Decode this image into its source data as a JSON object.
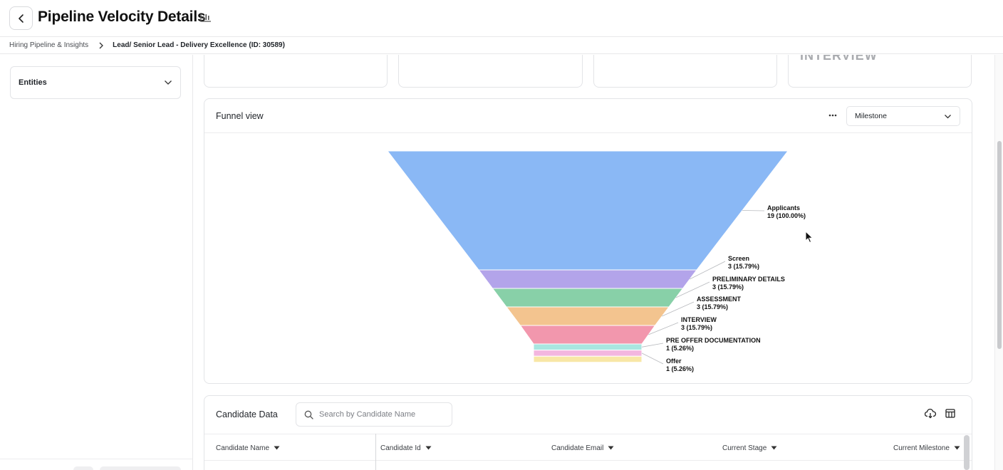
{
  "header": {
    "title": "Pipeline Velocity Details",
    "back_icon": "chevron-left-icon",
    "title_icon": "bar-chart-icon"
  },
  "breadcrumb": {
    "items": [
      "Hiring Pipeline & Insights",
      "Lead/ Senior Lead - Delivery Excellence (ID: 30589)"
    ]
  },
  "sidebar": {
    "entities_label": "Entities"
  },
  "metric_cards": [
    {
      "text": ""
    },
    {
      "text": ""
    },
    {
      "text": ""
    },
    {
      "text": "INTERVIEW"
    }
  ],
  "funnel": {
    "title": "Funnel view",
    "more_icon": "more-horizontal-icon",
    "view_select": "Milestone",
    "chart_data": {
      "type": "funnel",
      "stages": [
        {
          "name": "Applicants",
          "value": 19,
          "percent": "100.00%",
          "color": "#8ab8f5"
        },
        {
          "name": "Screen",
          "value": 3,
          "percent": "15.79%",
          "color": "#b3a4ea"
        },
        {
          "name": "PRELIMINARY DETAILS",
          "value": 3,
          "percent": "15.79%",
          "color": "#88d0a8"
        },
        {
          "name": "ASSESSMENT",
          "value": 3,
          "percent": "15.79%",
          "color": "#f3c48f"
        },
        {
          "name": "INTERVIEW",
          "value": 3,
          "percent": "15.79%",
          "color": "#f297ad"
        },
        {
          "name": "PRE OFFER DOCUMENTATION",
          "value": 1,
          "percent": "5.26%",
          "color": "#a9e6e0"
        },
        {
          "name": "Offer",
          "value": 1,
          "percent": "5.26%",
          "color": "#f3b6df"
        },
        {
          "name": "",
          "value": 1,
          "percent": "",
          "color": "#f8e7a6"
        }
      ]
    }
  },
  "candidates": {
    "title": "Candidate Data",
    "search_placeholder": "Search by Candidate Name",
    "columns": [
      "Candidate Name",
      "Candidate Id",
      "Candidate Email",
      "Current Stage",
      "Current Milestone"
    ]
  }
}
